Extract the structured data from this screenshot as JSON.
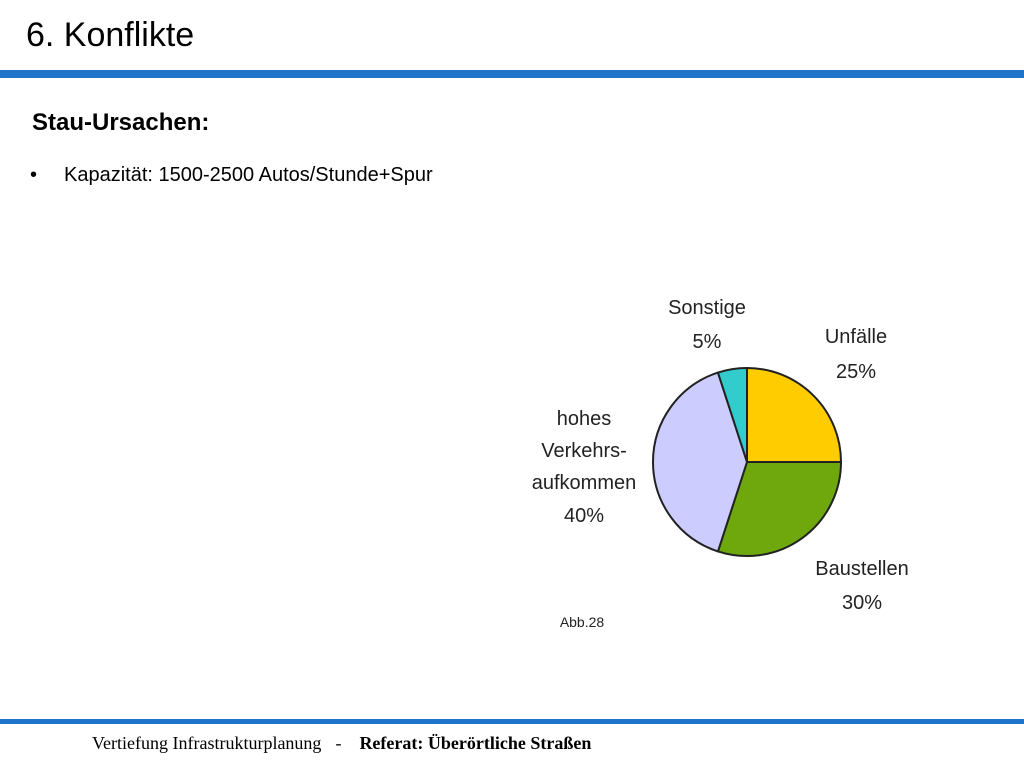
{
  "slide": {
    "title": "6. Konflikte",
    "subtitle": "Stau-Ursachen:",
    "bullets": [
      {
        "marker": "•",
        "text": "Kapazität: 1500-2500 Autos/Stunde+Spur"
      }
    ]
  },
  "chart_data": {
    "type": "pie",
    "title": "",
    "slices": [
      {
        "label_lines": [
          "Unfälle"
        ],
        "value_label": "25%",
        "value": 25,
        "color": "#ffcc00"
      },
      {
        "label_lines": [
          "Baustellen"
        ],
        "value_label": "30%",
        "value": 30,
        "color": "#6fa80c"
      },
      {
        "label_lines": [
          "hohes",
          "Verkehrs-",
          "aufkommen"
        ],
        "value_label": "40%",
        "value": 40,
        "color": "#ccccff"
      },
      {
        "label_lines": [
          "Sonstige"
        ],
        "value_label": "5%",
        "value": 5,
        "color": "#33cccc"
      }
    ],
    "caption": "Abb.28"
  },
  "footer": {
    "left": "Vertiefung Infrastrukturplanung",
    "separator": "-",
    "right": "Referat: Überörtliche Straßen"
  },
  "colors": {
    "accent_rule": "#1f74c9"
  }
}
